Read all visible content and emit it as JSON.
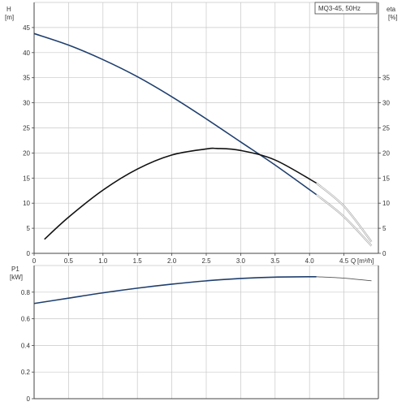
{
  "chart_data": [
    {
      "type": "line",
      "title": "MQ3-45, 50Hz",
      "xlabel": "Q",
      "xunit": "[m³/h]",
      "xlim": [
        0,
        5.0
      ],
      "x_ticks": [
        "0",
        "0.5",
        "1.0",
        "1.5",
        "2.0",
        "2.5",
        "3.0",
        "3.5",
        "4.0",
        "4.5"
      ],
      "ylabel": "H",
      "yunit": "[m]",
      "ylim": [
        0,
        50
      ],
      "y_ticks": [
        "0",
        "5",
        "10",
        "15",
        "20",
        "25",
        "30",
        "35",
        "40",
        "45"
      ],
      "y2label": "eta",
      "y2unit": "[%]",
      "y2lim": [
        0,
        50
      ],
      "y2_ticks": [
        "0",
        "5",
        "10",
        "15",
        "20",
        "25",
        "30",
        "35"
      ],
      "grid": true,
      "series": [
        {
          "axis": "left",
          "color": "#1f3f6e",
          "x": [
            0.0,
            0.5,
            1.0,
            1.5,
            2.0,
            2.5,
            3.0,
            3.5,
            4.1
          ],
          "y": [
            43.8,
            41.5,
            38.6,
            35.2,
            31.2,
            26.8,
            22.2,
            17.6,
            11.7
          ]
        },
        {
          "axis": "left",
          "color": "#9a9a9a",
          "x": [
            4.1,
            4.5,
            4.9
          ],
          "y": [
            11.7,
            7.3,
            1.5
          ]
        },
        {
          "axis": "right",
          "color": "#111111",
          "x": [
            0.15,
            0.5,
            1.0,
            1.5,
            2.0,
            2.5,
            2.65,
            3.0,
            3.5,
            4.1
          ],
          "y": [
            2.8,
            7.2,
            12.6,
            16.8,
            19.6,
            20.8,
            20.9,
            20.5,
            18.6,
            14.0
          ]
        },
        {
          "axis": "right",
          "color": "#9a9a9a",
          "x": [
            4.1,
            4.5,
            4.9
          ],
          "y": [
            14.0,
            9.4,
            2.3
          ]
        }
      ]
    },
    {
      "type": "line",
      "xlim": [
        0,
        5.0
      ],
      "ylabel": "P1",
      "yunit": "[kW]",
      "ylim": [
        0,
        1.0
      ],
      "y_ticks": [
        "0",
        "0.2",
        "0.4",
        "0.6",
        "0.8"
      ],
      "grid": true,
      "series": [
        {
          "color": "#1f3f6e",
          "x": [
            0.0,
            0.5,
            1.0,
            1.5,
            2.0,
            2.5,
            3.0,
            3.5,
            4.1
          ],
          "y": [
            0.715,
            0.755,
            0.795,
            0.83,
            0.86,
            0.885,
            0.903,
            0.913,
            0.916
          ]
        },
        {
          "color": "#9a9a9a",
          "x": [
            4.1,
            4.5,
            4.9
          ],
          "y": [
            0.916,
            0.905,
            0.885
          ]
        }
      ]
    }
  ]
}
